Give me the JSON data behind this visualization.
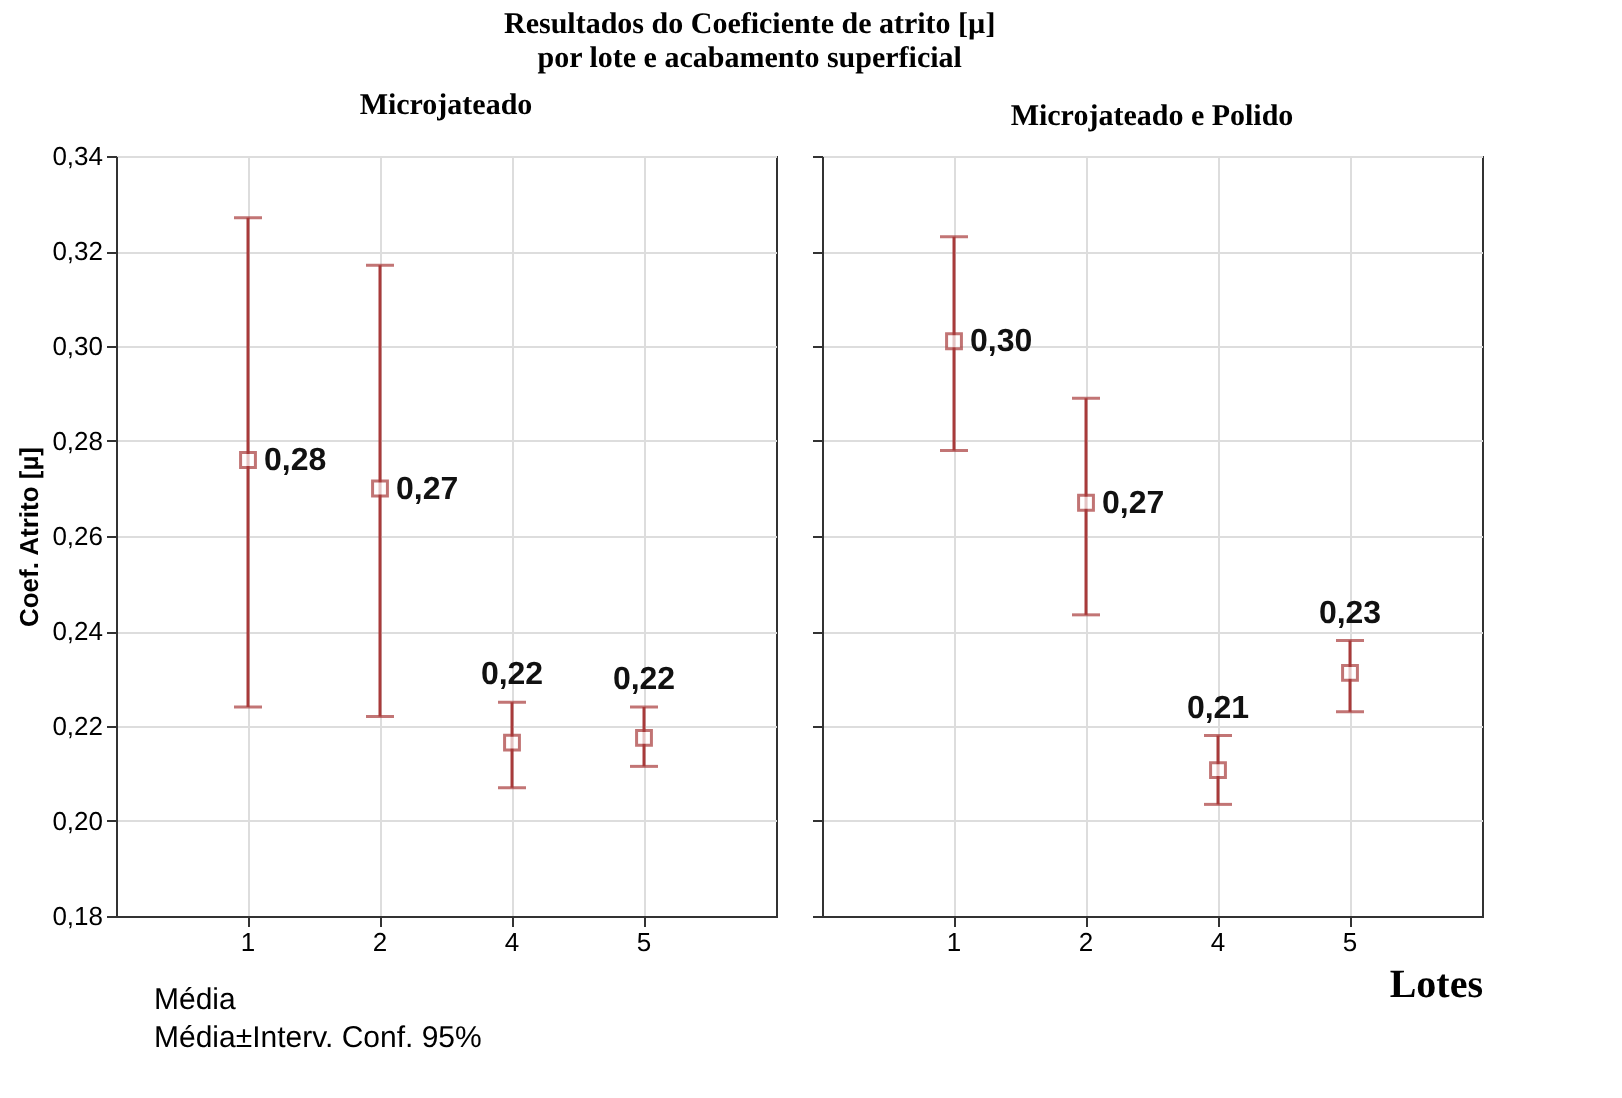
{
  "chart_data": [
    {
      "type": "scatter",
      "title": "Microjateado",
      "annotations": [
        "Resultados do Coeficiente de atrito [µ]",
        "por lote e acabamento superficial",
        "Média±Interv. Conf. 95%"
      ],
      "ylabel": "Coef. Atrito [µ]",
      "categories": [
        "1",
        "2",
        "4",
        "5"
      ],
      "ylim": [
        0.18,
        0.34
      ],
      "yticks": [
        {
          "value": 0.18,
          "label": "0,18"
        },
        {
          "value": 0.2,
          "label": "0,20"
        },
        {
          "value": 0.22,
          "label": "0,22"
        },
        {
          "value": 0.24,
          "label": "0,24"
        },
        {
          "value": 0.26,
          "label": "0,26"
        },
        {
          "value": 0.28,
          "label": "0,28"
        },
        {
          "value": 0.3,
          "label": "0,30"
        },
        {
          "value": 0.32,
          "label": "0,32"
        },
        {
          "value": 0.34,
          "label": "0,34"
        }
      ],
      "grid": true,
      "legend": "bottom",
      "marker": "square",
      "series": [
        {
          "name": "Média",
          "color": "#a83a3a",
          "values": [
            0.276,
            0.27,
            0.2165,
            0.2175
          ],
          "errors": [
            [
              0.224,
              0.327
            ],
            [
              0.222,
              0.317
            ],
            [
              0.207,
              0.225
            ],
            [
              0.2115,
              0.224
            ]
          ],
          "value_labels": [
            "0,28",
            "0,27",
            "0,22",
            "0,22"
          ]
        }
      ]
    },
    {
      "type": "scatter",
      "title": "Microjateado e Polido",
      "xlabel": "Lotes",
      "categories": [
        "1",
        "2",
        "4",
        "5"
      ],
      "ylim": [
        0.18,
        0.34
      ],
      "yticks": [
        {
          "value": 0.18,
          "label": null
        },
        {
          "value": 0.2,
          "label": null
        },
        {
          "value": 0.22,
          "label": null
        },
        {
          "value": 0.24,
          "label": null
        },
        {
          "value": 0.26,
          "label": null
        },
        {
          "value": 0.28,
          "label": null
        },
        {
          "value": 0.3,
          "label": null
        },
        {
          "value": 0.32,
          "label": null
        },
        {
          "value": 0.34,
          "label": null
        }
      ],
      "grid": true,
      "tick_labels": "x",
      "marker": "square",
      "series": [
        {
          "color": "#a83a3a",
          "values": [
            0.301,
            0.267,
            0.2107,
            0.2312
          ],
          "errors": [
            [
              0.278,
              0.323
            ],
            [
              0.2434,
              0.289
            ],
            [
              0.2035,
              0.218
            ],
            [
              0.223,
              0.238
            ]
          ],
          "value_labels": [
            "0,30",
            "0,27",
            "0,21",
            "0,23"
          ]
        }
      ]
    }
  ]
}
